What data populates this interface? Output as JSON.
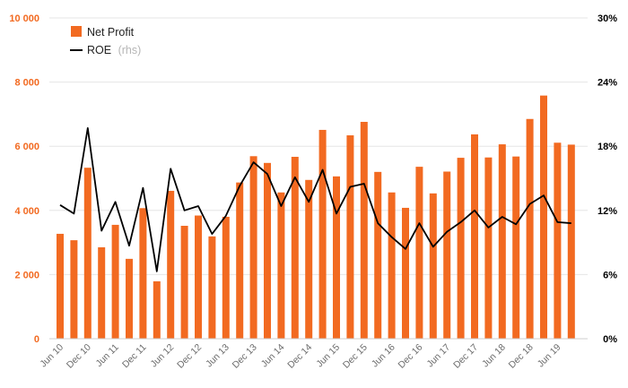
{
  "chart_data": {
    "type": "bar",
    "colors": {
      "bar": "#f26a21",
      "line": "#000000",
      "grid": "#e6e6e6"
    },
    "y_left": {
      "min": 0,
      "max": 10000,
      "ticks": [
        0,
        2000,
        4000,
        6000,
        8000,
        10000
      ],
      "tick_labels": [
        "0",
        "2 000",
        "4 000",
        "6 000",
        "8 000",
        "10 000"
      ]
    },
    "y_right": {
      "min": 0,
      "max": 30,
      "ticks": [
        0,
        6,
        12,
        18,
        24,
        30
      ],
      "tick_labels": [
        "0%",
        "6%",
        "12%",
        "18%",
        "24%",
        "30%"
      ]
    },
    "x_tick_labels": [
      "Jun 10",
      "Dec 10",
      "Jun 11",
      "Dec 11",
      "Jun 12",
      "Dec 12",
      "Jun 13",
      "Dec 13",
      "Jun 14",
      "Dec 14",
      "Jun 15",
      "Dec 15",
      "Jun 16",
      "Dec 16",
      "Jun 17",
      "Dec 17",
      "Jun 18",
      "Dec 18",
      "Jun 19"
    ],
    "grid": true,
    "legend": {
      "placement": "top-left",
      "items": [
        {
          "label": "Net Profit",
          "suffix": ""
        },
        {
          "label": "ROE",
          "suffix": "(rhs)"
        }
      ]
    },
    "series": [
      {
        "name": "Net Profit",
        "type": "bar",
        "axis": "left",
        "values": [
          3270,
          3070,
          5330,
          2850,
          3550,
          2490,
          4070,
          1790,
          4610,
          3520,
          3840,
          3190,
          3800,
          4870,
          5690,
          5480,
          4560,
          5670,
          4950,
          6510,
          5060,
          6340,
          6760,
          5200,
          4560,
          4080,
          5360,
          4530,
          5210,
          5640,
          6370,
          5650,
          6060,
          5680,
          6850,
          7580,
          6110,
          6050
        ]
      },
      {
        "name": "ROE",
        "type": "line",
        "axis": "right",
        "values": [
          12.5,
          11.7,
          19.7,
          10.1,
          12.8,
          8.7,
          14.1,
          6.3,
          15.9,
          12.0,
          12.4,
          9.8,
          11.5,
          14.3,
          16.5,
          15.4,
          12.4,
          15.1,
          12.8,
          15.8,
          11.7,
          14.2,
          14.5,
          10.8,
          9.5,
          8.4,
          10.8,
          8.6,
          10.0,
          10.9,
          12.0,
          10.4,
          11.4,
          10.7,
          12.6,
          13.4,
          10.9,
          10.8
        ]
      }
    ]
  }
}
